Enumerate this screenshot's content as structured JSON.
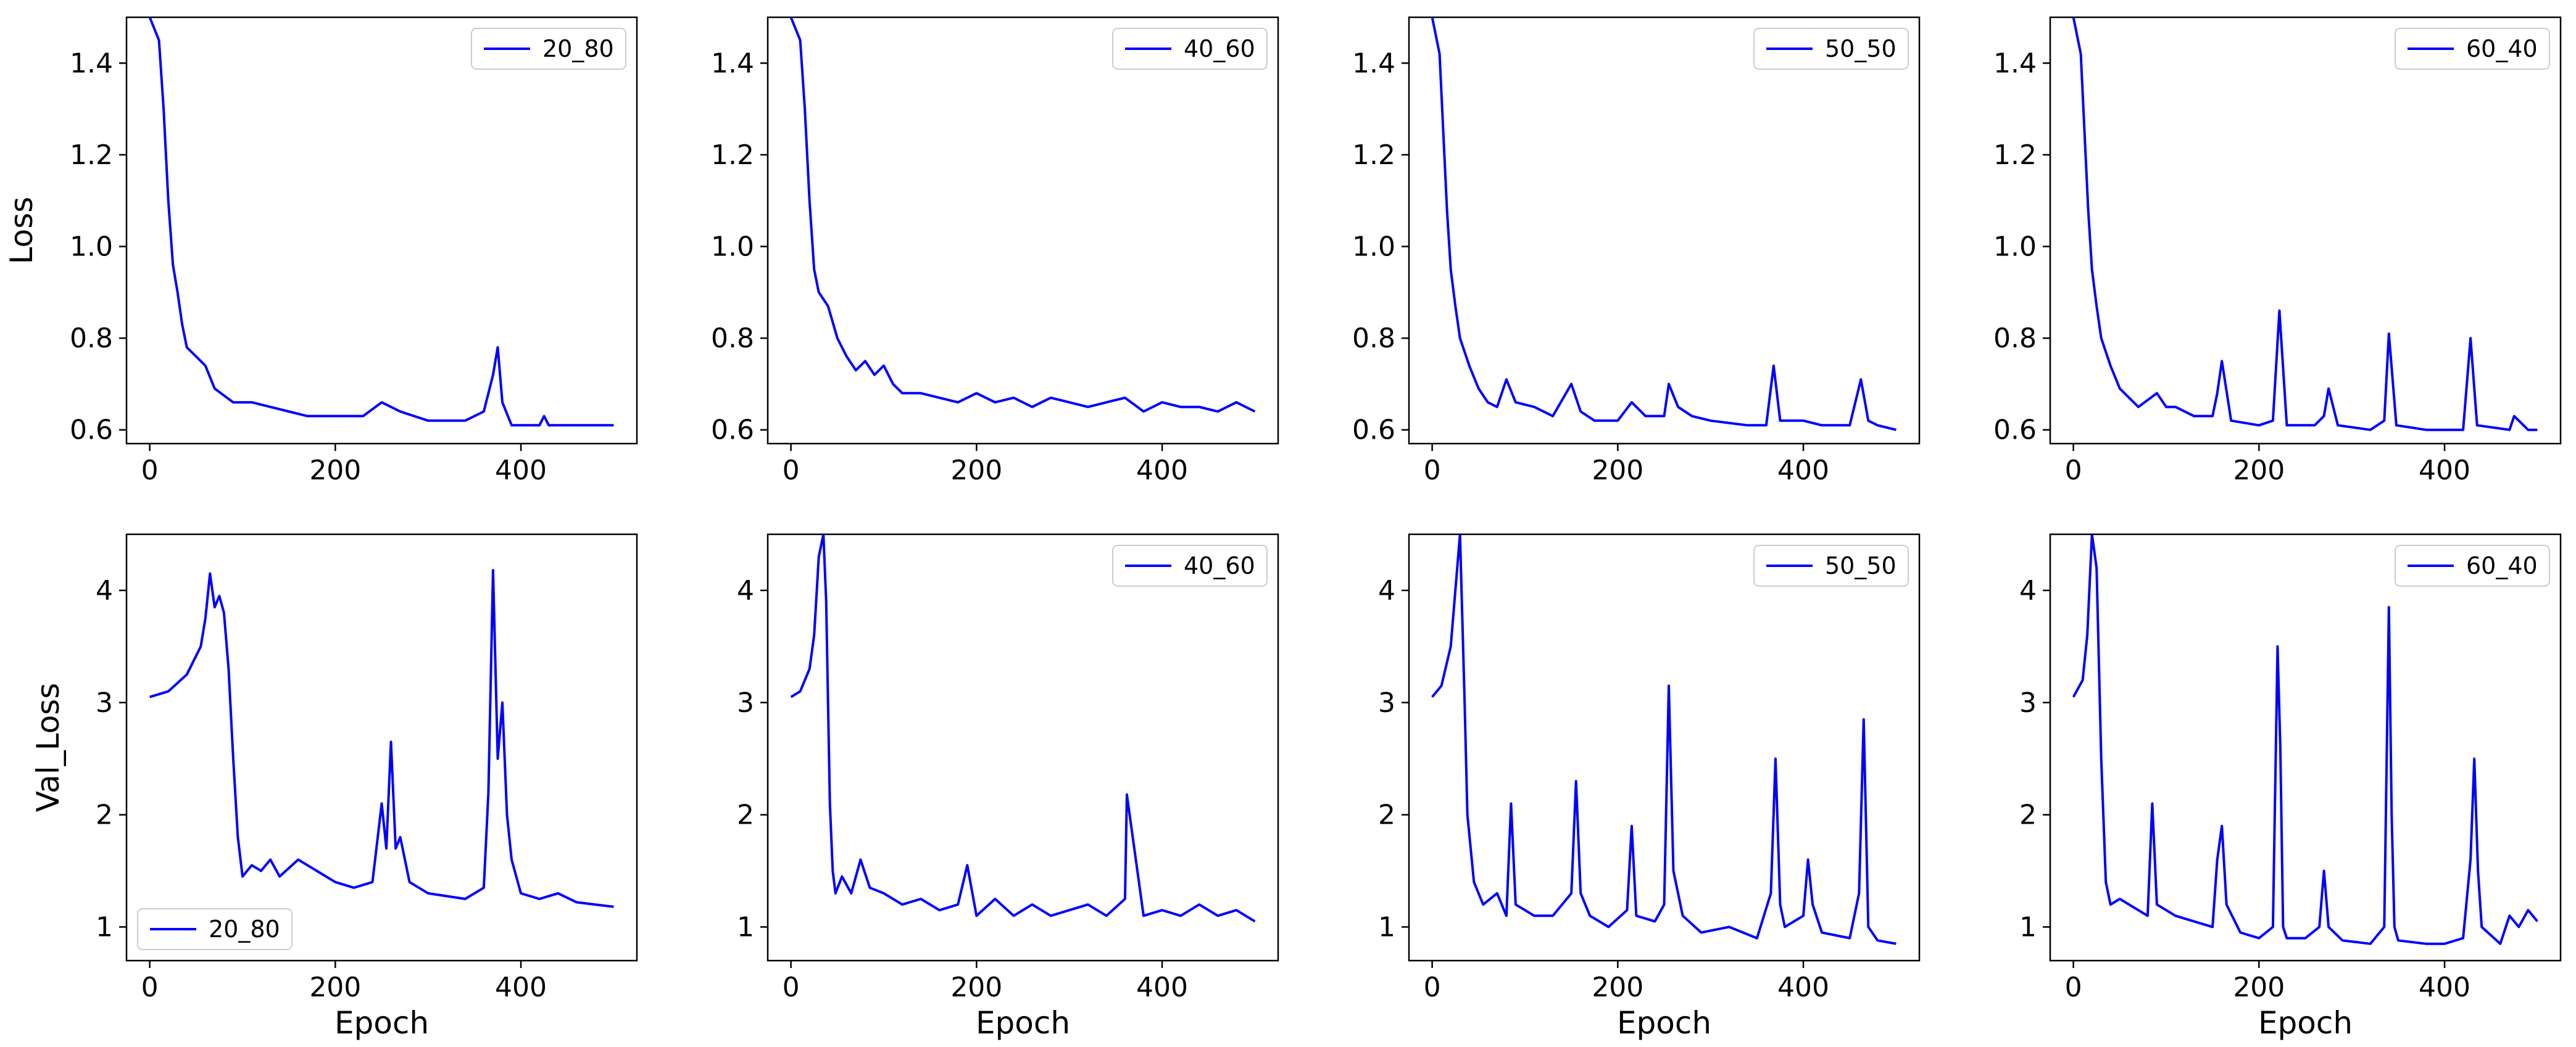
{
  "line_color": "#0000ff",
  "chart_data": [
    {
      "type": "line",
      "panel": "20_80-loss",
      "title": "",
      "xlabel": "",
      "ylabel": "Loss",
      "xlim": [
        -25,
        525
      ],
      "ylim": [
        0.57,
        1.5
      ],
      "xticks": [
        0,
        200,
        400
      ],
      "yticks": [
        0.6,
        0.8,
        1.0,
        1.2,
        1.4
      ],
      "ytick_format": 1,
      "legend_location": "top-right",
      "series": [
        {
          "name": "20_80",
          "x": [
            0,
            10,
            15,
            20,
            25,
            30,
            35,
            40,
            50,
            60,
            70,
            90,
            110,
            130,
            150,
            170,
            200,
            230,
            250,
            270,
            300,
            340,
            360,
            370,
            375,
            380,
            390,
            420,
            425,
            430,
            460,
            500
          ],
          "y": [
            1.5,
            1.45,
            1.3,
            1.1,
            0.96,
            0.9,
            0.83,
            0.78,
            0.76,
            0.74,
            0.69,
            0.66,
            0.66,
            0.65,
            0.64,
            0.63,
            0.63,
            0.63,
            0.66,
            0.64,
            0.62,
            0.62,
            0.64,
            0.72,
            0.78,
            0.66,
            0.61,
            0.61,
            0.63,
            0.61,
            0.61,
            0.61
          ]
        }
      ]
    },
    {
      "type": "line",
      "panel": "40_60-loss",
      "title": "",
      "xlabel": "",
      "ylabel": "",
      "xlim": [
        -25,
        525
      ],
      "ylim": [
        0.57,
        1.5
      ],
      "xticks": [
        0,
        200,
        400
      ],
      "yticks": [
        0.6,
        0.8,
        1.0,
        1.2,
        1.4
      ],
      "ytick_format": 1,
      "legend_location": "top-right",
      "series": [
        {
          "name": "40_60",
          "x": [
            0,
            10,
            15,
            20,
            25,
            30,
            40,
            50,
            60,
            70,
            80,
            90,
            100,
            110,
            120,
            140,
            160,
            180,
            200,
            220,
            240,
            260,
            280,
            300,
            320,
            340,
            360,
            380,
            400,
            420,
            440,
            460,
            480,
            500
          ],
          "y": [
            1.5,
            1.45,
            1.3,
            1.1,
            0.95,
            0.9,
            0.87,
            0.8,
            0.76,
            0.73,
            0.75,
            0.72,
            0.74,
            0.7,
            0.68,
            0.68,
            0.67,
            0.66,
            0.68,
            0.66,
            0.67,
            0.65,
            0.67,
            0.66,
            0.65,
            0.66,
            0.67,
            0.64,
            0.66,
            0.65,
            0.65,
            0.64,
            0.66,
            0.64
          ]
        }
      ]
    },
    {
      "type": "line",
      "panel": "50_50-loss",
      "title": "",
      "xlabel": "",
      "ylabel": "",
      "xlim": [
        -25,
        525
      ],
      "ylim": [
        0.57,
        1.5
      ],
      "xticks": [
        0,
        200,
        400
      ],
      "yticks": [
        0.6,
        0.8,
        1.0,
        1.2,
        1.4
      ],
      "ytick_format": 1,
      "legend_location": "top-right",
      "series": [
        {
          "name": "50_50",
          "x": [
            0,
            8,
            12,
            16,
            20,
            25,
            30,
            40,
            50,
            60,
            70,
            80,
            90,
            110,
            130,
            150,
            160,
            175,
            200,
            215,
            230,
            250,
            255,
            265,
            280,
            300,
            340,
            360,
            368,
            375,
            400,
            420,
            450,
            462,
            470,
            480,
            500
          ],
          "y": [
            1.5,
            1.42,
            1.25,
            1.08,
            0.95,
            0.87,
            0.8,
            0.74,
            0.69,
            0.66,
            0.65,
            0.71,
            0.66,
            0.65,
            0.63,
            0.7,
            0.64,
            0.62,
            0.62,
            0.66,
            0.63,
            0.63,
            0.7,
            0.65,
            0.63,
            0.62,
            0.61,
            0.61,
            0.74,
            0.62,
            0.62,
            0.61,
            0.61,
            0.71,
            0.62,
            0.61,
            0.6
          ]
        }
      ]
    },
    {
      "type": "line",
      "panel": "60_40-loss",
      "title": "",
      "xlabel": "",
      "ylabel": "",
      "xlim": [
        -25,
        525
      ],
      "ylim": [
        0.57,
        1.5
      ],
      "xticks": [
        0,
        200,
        400
      ],
      "yticks": [
        0.6,
        0.8,
        1.0,
        1.2,
        1.4
      ],
      "ytick_format": 1,
      "legend_location": "top-right",
      "series": [
        {
          "name": "60_40",
          "x": [
            0,
            8,
            12,
            16,
            20,
            25,
            30,
            40,
            50,
            60,
            70,
            90,
            100,
            110,
            130,
            150,
            155,
            160,
            170,
            200,
            215,
            222,
            230,
            260,
            270,
            275,
            285,
            320,
            335,
            340,
            348,
            380,
            420,
            428,
            435,
            470,
            475,
            490,
            500
          ],
          "y": [
            1.5,
            1.42,
            1.25,
            1.08,
            0.95,
            0.87,
            0.8,
            0.74,
            0.69,
            0.67,
            0.65,
            0.68,
            0.65,
            0.65,
            0.63,
            0.63,
            0.68,
            0.75,
            0.62,
            0.61,
            0.62,
            0.86,
            0.61,
            0.61,
            0.63,
            0.69,
            0.61,
            0.6,
            0.62,
            0.81,
            0.61,
            0.6,
            0.6,
            0.8,
            0.61,
            0.6,
            0.63,
            0.6,
            0.6
          ]
        }
      ]
    },
    {
      "type": "line",
      "panel": "20_80-val-loss",
      "title": "",
      "xlabel": "Epoch",
      "ylabel": "Val_Loss",
      "xlim": [
        -25,
        525
      ],
      "ylim": [
        0.7,
        4.5
      ],
      "xticks": [
        0,
        200,
        400
      ],
      "yticks": [
        1,
        2,
        3,
        4
      ],
      "ytick_format": 0,
      "legend_location": "bottom-left",
      "series": [
        {
          "name": "20_80",
          "x": [
            0,
            20,
            40,
            55,
            60,
            65,
            70,
            75,
            80,
            85,
            90,
            95,
            100,
            110,
            120,
            130,
            140,
            160,
            180,
            200,
            220,
            240,
            250,
            255,
            260,
            265,
            270,
            280,
            300,
            340,
            360,
            365,
            370,
            375,
            380,
            385,
            390,
            400,
            420,
            440,
            460,
            480,
            500
          ],
          "y": [
            3.05,
            3.1,
            3.25,
            3.5,
            3.75,
            4.15,
            3.85,
            3.95,
            3.8,
            3.3,
            2.5,
            1.8,
            1.45,
            1.55,
            1.5,
            1.6,
            1.45,
            1.6,
            1.5,
            1.4,
            1.35,
            1.4,
            2.1,
            1.7,
            2.65,
            1.7,
            1.8,
            1.4,
            1.3,
            1.25,
            1.35,
            2.2,
            4.18,
            2.5,
            3.0,
            2.0,
            1.6,
            1.3,
            1.25,
            1.3,
            1.22,
            1.2,
            1.18
          ]
        }
      ]
    },
    {
      "type": "line",
      "panel": "40_60-val-loss",
      "title": "",
      "xlabel": "Epoch",
      "ylabel": "",
      "xlim": [
        -25,
        525
      ],
      "ylim": [
        0.7,
        4.5
      ],
      "xticks": [
        0,
        200,
        400
      ],
      "yticks": [
        1,
        2,
        3,
        4
      ],
      "ytick_format": 0,
      "legend_location": "top-right",
      "series": [
        {
          "name": "40_60",
          "x": [
            0,
            10,
            20,
            25,
            30,
            35,
            38,
            42,
            45,
            48,
            55,
            65,
            75,
            85,
            100,
            120,
            140,
            160,
            180,
            190,
            200,
            220,
            240,
            260,
            280,
            300,
            320,
            340,
            360,
            362,
            380,
            400,
            420,
            440,
            460,
            480,
            500
          ],
          "y": [
            3.05,
            3.1,
            3.3,
            3.6,
            4.3,
            4.5,
            3.9,
            2.1,
            1.5,
            1.3,
            1.45,
            1.3,
            1.6,
            1.35,
            1.3,
            1.2,
            1.25,
            1.15,
            1.2,
            1.55,
            1.1,
            1.25,
            1.1,
            1.2,
            1.1,
            1.15,
            1.2,
            1.1,
            1.25,
            2.18,
            1.1,
            1.15,
            1.1,
            1.2,
            1.1,
            1.15,
            1.05
          ]
        }
      ]
    },
    {
      "type": "line",
      "panel": "50_50-val-loss",
      "title": "",
      "xlabel": "Epoch",
      "ylabel": "",
      "xlim": [
        -25,
        525
      ],
      "ylim": [
        0.7,
        4.5
      ],
      "xticks": [
        0,
        200,
        400
      ],
      "yticks": [
        1,
        2,
        3,
        4
      ],
      "ytick_format": 0,
      "legend_location": "top-right",
      "series": [
        {
          "name": "50_50",
          "x": [
            0,
            10,
            20,
            25,
            30,
            35,
            38,
            45,
            55,
            70,
            80,
            85,
            90,
            110,
            130,
            150,
            155,
            160,
            170,
            190,
            210,
            215,
            220,
            240,
            250,
            255,
            260,
            270,
            290,
            320,
            350,
            365,
            370,
            375,
            380,
            400,
            405,
            410,
            420,
            450,
            460,
            465,
            470,
            480,
            500
          ],
          "y": [
            3.05,
            3.15,
            3.5,
            4.0,
            4.5,
            3.0,
            2.0,
            1.4,
            1.2,
            1.3,
            1.1,
            2.1,
            1.2,
            1.1,
            1.1,
            1.3,
            2.3,
            1.3,
            1.1,
            1.0,
            1.15,
            1.9,
            1.1,
            1.05,
            1.2,
            3.15,
            1.5,
            1.1,
            0.95,
            1.0,
            0.9,
            1.3,
            2.5,
            1.2,
            1.0,
            1.1,
            1.6,
            1.2,
            0.95,
            0.9,
            1.3,
            2.85,
            1.0,
            0.88,
            0.85
          ]
        }
      ]
    },
    {
      "type": "line",
      "panel": "60_40-val-loss",
      "title": "",
      "xlabel": "Epoch",
      "ylabel": "",
      "xlim": [
        -25,
        525
      ],
      "ylim": [
        0.7,
        4.5
      ],
      "xticks": [
        0,
        200,
        400
      ],
      "yticks": [
        1,
        2,
        3,
        4
      ],
      "ytick_format": 0,
      "legend_location": "top-right",
      "series": [
        {
          "name": "60_40",
          "x": [
            0,
            10,
            15,
            20,
            25,
            30,
            35,
            40,
            50,
            70,
            80,
            85,
            90,
            110,
            130,
            150,
            155,
            160,
            165,
            180,
            200,
            215,
            220,
            223,
            226,
            230,
            250,
            265,
            270,
            275,
            290,
            320,
            335,
            340,
            343,
            346,
            350,
            380,
            400,
            420,
            428,
            432,
            436,
            440,
            460,
            470,
            480,
            490,
            500
          ],
          "y": [
            3.05,
            3.2,
            3.6,
            4.5,
            4.2,
            2.5,
            1.4,
            1.2,
            1.25,
            1.15,
            1.1,
            2.1,
            1.2,
            1.1,
            1.05,
            1.0,
            1.6,
            1.9,
            1.2,
            0.95,
            0.9,
            1.0,
            3.5,
            2.6,
            1.0,
            0.9,
            0.9,
            1.0,
            1.5,
            1.0,
            0.88,
            0.85,
            1.0,
            3.85,
            2.0,
            1.0,
            0.88,
            0.85,
            0.85,
            0.9,
            1.6,
            2.5,
            1.5,
            1.0,
            0.85,
            1.1,
            1.0,
            1.15,
            1.05
          ]
        }
      ]
    }
  ]
}
